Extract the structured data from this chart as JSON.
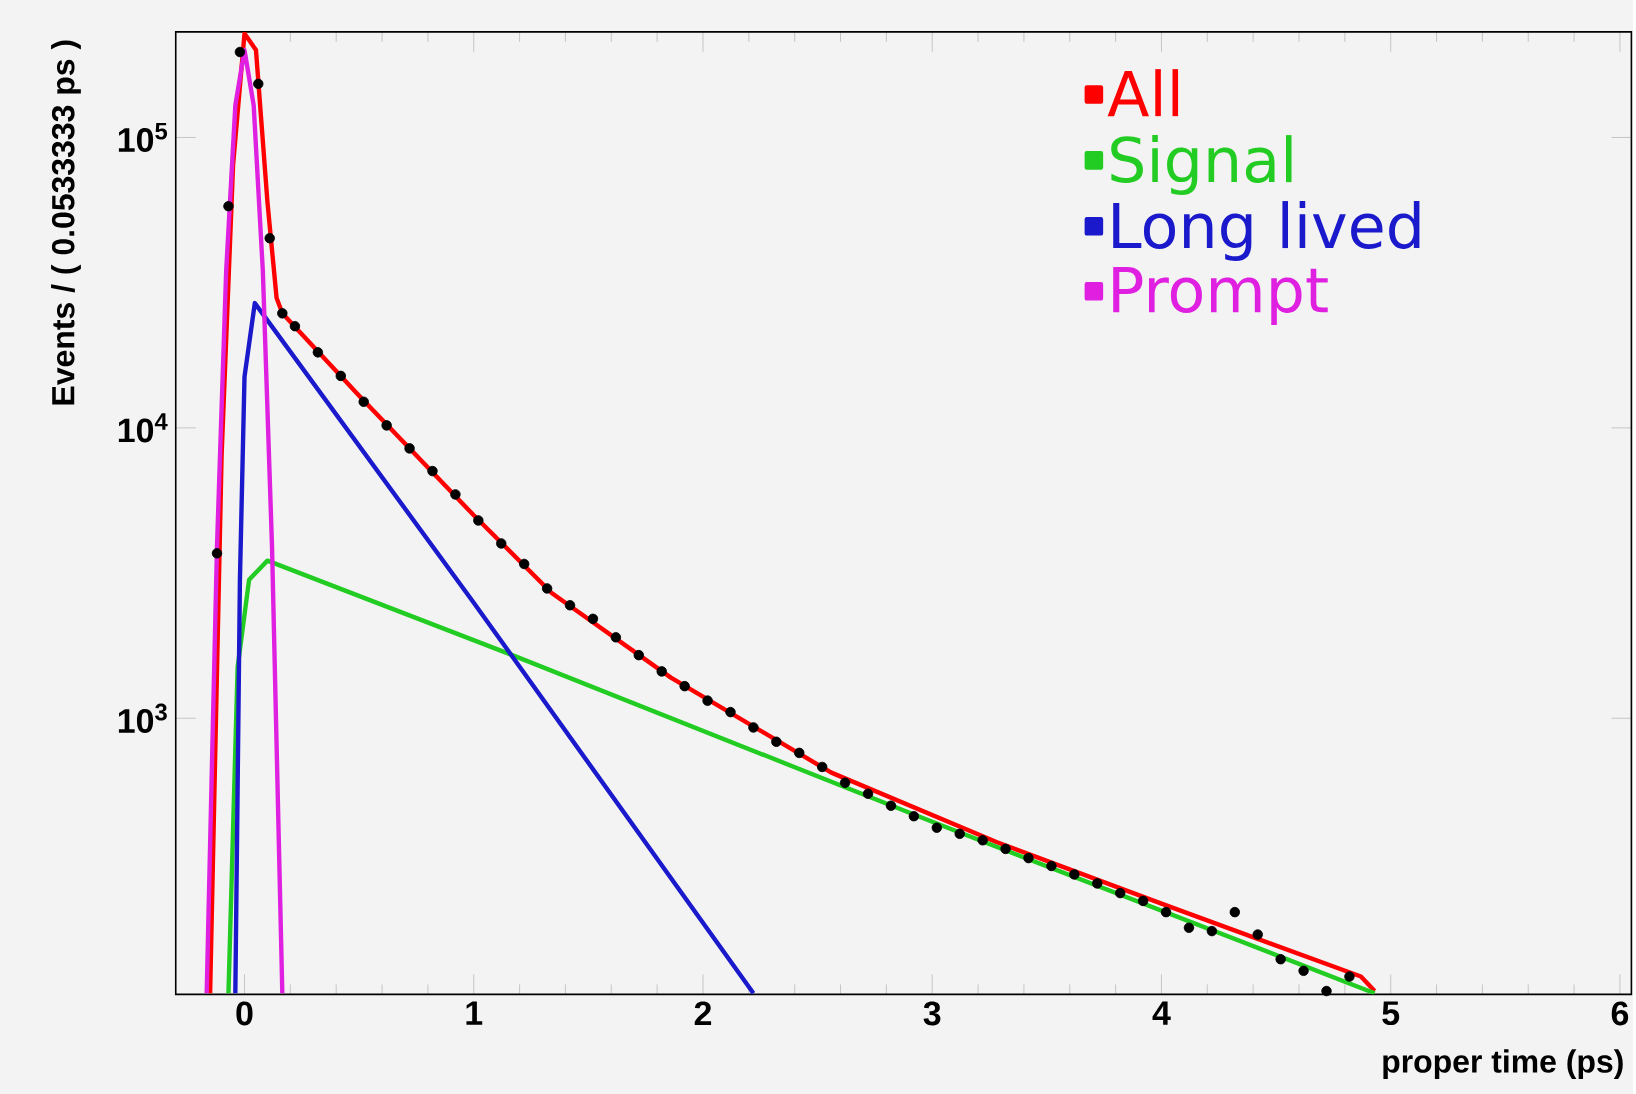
{
  "chart_data": {
    "type": "line",
    "xlabel": "proper time (ps)",
    "ylabel": "Events / ( 0.0533333 ps )",
    "log": true,
    "legend": "top right",
    "xlim": [
      -0.3,
      6.05
    ],
    "ylim": [
      112,
      231000
    ],
    "xticks": [
      0,
      1,
      2,
      3,
      4,
      5,
      6
    ],
    "yticks": [
      {
        "value": 1000,
        "label": "10$^{3}$"
      },
      {
        "value": 10000,
        "label": "10$^{4}$"
      },
      {
        "value": 100000,
        "label": "10$^{5}$"
      }
    ],
    "series": [
      {
        "type": "scatter",
        "marker": "circle",
        "color": "#000000",
        "x": [
          -0.12,
          -0.07,
          -0.02,
          0.06,
          0.11,
          0.165,
          0.22,
          0.32,
          0.42,
          0.52,
          0.62,
          0.72,
          0.82,
          0.92,
          1.02,
          1.12,
          1.22,
          1.32,
          1.42,
          1.52,
          1.62,
          1.72,
          1.82,
          1.92,
          2.02,
          2.12,
          2.22,
          2.32,
          2.42,
          2.52,
          2.62,
          2.72,
          2.82,
          2.92,
          3.02,
          3.12,
          3.22,
          3.32,
          3.42,
          3.52,
          3.62,
          3.72,
          3.82,
          3.92,
          4.02,
          4.12,
          4.22,
          4.32,
          4.42,
          4.52,
          4.62,
          4.72,
          4.82
        ],
        "values": [
          3700,
          58000,
          197000,
          153000,
          45000,
          24800,
          22400,
          18200,
          15100,
          12300,
          10200,
          8500,
          7100,
          5900,
          4800,
          4000,
          3400,
          2800,
          2450,
          2200,
          1900,
          1650,
          1450,
          1290,
          1150,
          1050,
          930,
          830,
          760,
          680,
          600,
          550,
          500,
          460,
          420,
          400,
          380,
          355,
          330,
          310,
          290,
          270,
          250,
          235,
          215,
          190,
          185,
          215,
          180,
          148,
          135,
          115,
          129
        ]
      },
      {
        "name": "All",
        "marker": "none",
        "color": "#ff0000",
        "x": [
          -0.15,
          -0.1,
          -0.05,
          0.0,
          0.05,
          0.1,
          0.14,
          0.165,
          0.5,
          1.0,
          1.34,
          1.86,
          2.56,
          3.28,
          4.0,
          4.87,
          4.93
        ],
        "values": [
          113,
          8000,
          80000,
          228000,
          200000,
          60000,
          28000,
          24800,
          12900,
          5000,
          2700,
          1380,
          650,
          375,
          230,
          129,
          115
        ]
      },
      {
        "name": "Signal",
        "marker": "none",
        "color": "#22cc22",
        "x": [
          -0.07,
          -0.03,
          0.02,
          0.1,
          1.16,
          3.0,
          4.93
        ],
        "values": [
          113,
          1500,
          3000,
          3490,
          1660,
          440,
          113
        ]
      },
      {
        "name": "Long lived",
        "marker": "none",
        "color": "#1a1acc",
        "x": [
          -0.04,
          -0.02,
          0.0,
          0.045,
          1.0,
          2.22
        ],
        "values": [
          113,
          3000,
          15000,
          26900,
          2500,
          113
        ]
      },
      {
        "name": "Prompt",
        "marker": "none",
        "color": "#e020e0",
        "x": [
          -0.165,
          -0.12,
          -0.08,
          -0.04,
          0.0,
          0.04,
          0.08,
          0.12,
          0.165
        ],
        "values": [
          113,
          3900,
          34700,
          129000,
          200000,
          129000,
          34700,
          3900,
          113
        ]
      }
    ]
  }
}
